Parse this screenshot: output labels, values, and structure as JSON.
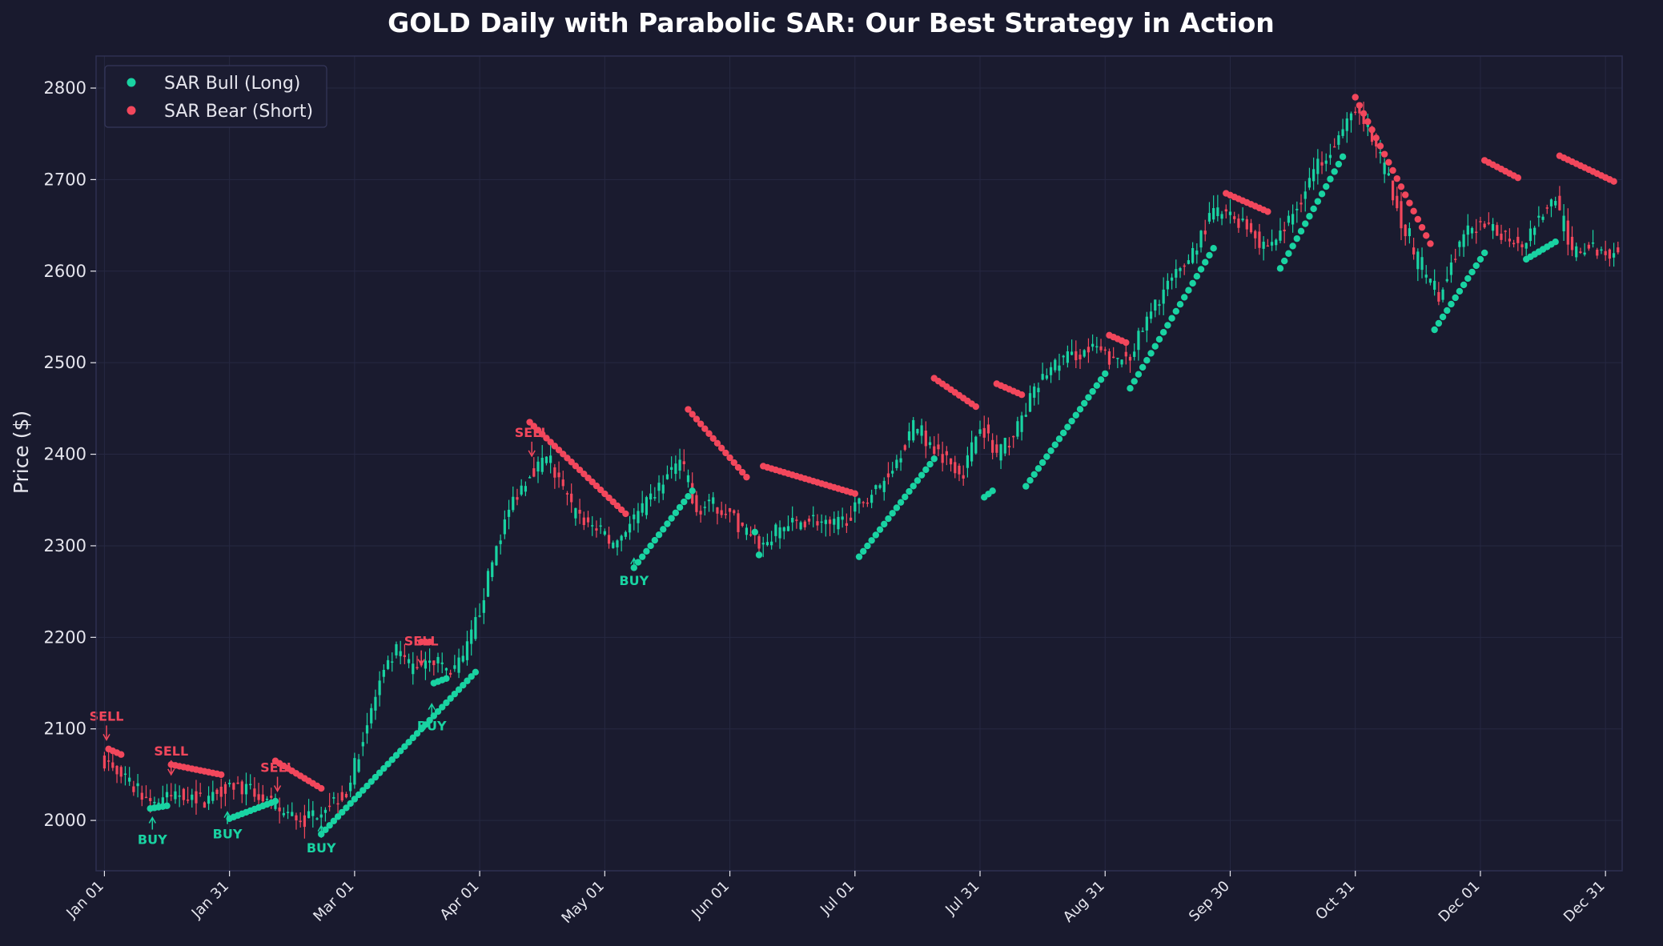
{
  "colors": {
    "background": "#191a2e",
    "plot_background": "#1a1b2f",
    "bull": "#19d3a2",
    "bear": "#f2475c",
    "grid": "#262842",
    "spine": "#2e3050",
    "text": "#e6e6ee"
  },
  "chart_data": {
    "type": "candlestick",
    "title": "GOLD Daily with Parabolic SAR: Our Best Strategy in Action",
    "xlabel": "",
    "ylabel": "Price ($)",
    "ylim": [
      1945,
      2835
    ],
    "x_range_days": [
      -2,
      364
    ],
    "y_ticks": [
      2000,
      2100,
      2200,
      2300,
      2400,
      2500,
      2600,
      2700,
      2800
    ],
    "x_ticks": [
      {
        "label": "Jan 01",
        "day": 0
      },
      {
        "label": "Jan 31",
        "day": 30
      },
      {
        "label": "Mar 01",
        "day": 60
      },
      {
        "label": "Apr 01",
        "day": 90
      },
      {
        "label": "May 01",
        "day": 120
      },
      {
        "label": "Jun 01",
        "day": 150
      },
      {
        "label": "Jul 01",
        "day": 180
      },
      {
        "label": "Jul 31",
        "day": 210
      },
      {
        "label": "Aug 31",
        "day": 240
      },
      {
        "label": "Sep 30",
        "day": 270
      },
      {
        "label": "Oct 31",
        "day": 300
      },
      {
        "label": "Dec 01",
        "day": 330
      },
      {
        "label": "Dec 31",
        "day": 360
      }
    ],
    "grid": true,
    "legend_position": "top-left",
    "series": [
      {
        "name": "SAR Bull (Long)",
        "color": "#19d3a2"
      },
      {
        "name": "SAR Bear (Short)",
        "color": "#f2475c"
      }
    ],
    "close_path": [
      [
        0,
        2065
      ],
      [
        6,
        2040
      ],
      [
        12,
        2020
      ],
      [
        18,
        2030
      ],
      [
        24,
        2022
      ],
      [
        30,
        2040
      ],
      [
        36,
        2030
      ],
      [
        42,
        2010
      ],
      [
        48,
        2000
      ],
      [
        54,
        2020
      ],
      [
        58,
        2030
      ],
      [
        62,
        2090
      ],
      [
        66,
        2150
      ],
      [
        70,
        2185
      ],
      [
        74,
        2165
      ],
      [
        78,
        2180
      ],
      [
        82,
        2160
      ],
      [
        86,
        2175
      ],
      [
        90,
        2230
      ],
      [
        94,
        2300
      ],
      [
        98,
        2350
      ],
      [
        102,
        2380
      ],
      [
        106,
        2395
      ],
      [
        110,
        2360
      ],
      [
        114,
        2330
      ],
      [
        118,
        2320
      ],
      [
        122,
        2300
      ],
      [
        126,
        2325
      ],
      [
        130,
        2345
      ],
      [
        134,
        2370
      ],
      [
        138,
        2395
      ],
      [
        142,
        2340
      ],
      [
        146,
        2345
      ],
      [
        150,
        2335
      ],
      [
        154,
        2310
      ],
      [
        158,
        2300
      ],
      [
        162,
        2320
      ],
      [
        166,
        2325
      ],
      [
        170,
        2330
      ],
      [
        174,
        2320
      ],
      [
        178,
        2330
      ],
      [
        182,
        2350
      ],
      [
        186,
        2365
      ],
      [
        190,
        2395
      ],
      [
        194,
        2430
      ],
      [
        198,
        2410
      ],
      [
        202,
        2395
      ],
      [
        206,
        2380
      ],
      [
        210,
        2435
      ],
      [
        214,
        2400
      ],
      [
        218,
        2420
      ],
      [
        222,
        2460
      ],
      [
        226,
        2490
      ],
      [
        230,
        2505
      ],
      [
        234,
        2510
      ],
      [
        238,
        2515
      ],
      [
        242,
        2500
      ],
      [
        246,
        2510
      ],
      [
        250,
        2545
      ],
      [
        254,
        2580
      ],
      [
        258,
        2600
      ],
      [
        262,
        2630
      ],
      [
        266,
        2665
      ],
      [
        270,
        2660
      ],
      [
        274,
        2650
      ],
      [
        278,
        2625
      ],
      [
        282,
        2640
      ],
      [
        286,
        2670
      ],
      [
        290,
        2710
      ],
      [
        294,
        2735
      ],
      [
        298,
        2760
      ],
      [
        300,
        2780
      ],
      [
        304,
        2745
      ],
      [
        308,
        2700
      ],
      [
        312,
        2640
      ],
      [
        316,
        2600
      ],
      [
        320,
        2570
      ],
      [
        324,
        2620
      ],
      [
        328,
        2650
      ],
      [
        332,
        2645
      ],
      [
        336,
        2640
      ],
      [
        340,
        2630
      ],
      [
        344,
        2660
      ],
      [
        348,
        2680
      ],
      [
        352,
        2620
      ],
      [
        356,
        2625
      ],
      [
        360,
        2620
      ],
      [
        363,
        2625
      ]
    ],
    "sar_bull": [
      {
        "from": 11,
        "to": 15,
        "start": 2013,
        "end": 2016
      },
      {
        "from": 30,
        "to": 41,
        "start": 2002,
        "end": 2021
      },
      {
        "from": 52,
        "to": 89,
        "start": 1985,
        "end": 2162
      },
      {
        "from": 79,
        "to": 82,
        "start": 2150,
        "end": 2155
      },
      {
        "from": 127,
        "to": 141,
        "start": 2276,
        "end": 2360
      },
      {
        "from": 156,
        "to": 157,
        "start": 2315,
        "end": 2290
      },
      {
        "from": 181,
        "to": 199,
        "start": 2288,
        "end": 2395
      },
      {
        "from": 211,
        "to": 213,
        "start": 2353,
        "end": 2360
      },
      {
        "from": 221,
        "to": 240,
        "start": 2365,
        "end": 2488
      },
      {
        "from": 246,
        "to": 266,
        "start": 2472,
        "end": 2625
      },
      {
        "from": 282,
        "to": 297,
        "start": 2603,
        "end": 2725
      },
      {
        "from": 319,
        "to": 331,
        "start": 2536,
        "end": 2620
      },
      {
        "from": 341,
        "to": 348,
        "start": 2613,
        "end": 2632
      }
    ],
    "sar_bear": [
      {
        "from": 1,
        "to": 4,
        "start": 2078,
        "end": 2072
      },
      {
        "from": 16,
        "to": 28,
        "start": 2061,
        "end": 2050
      },
      {
        "from": 41,
        "to": 52,
        "start": 2065,
        "end": 2035
      },
      {
        "from": 76,
        "to": 78,
        "start": 2195,
        "end": 2195
      },
      {
        "from": 102,
        "to": 125,
        "start": 2435,
        "end": 2335
      },
      {
        "from": 140,
        "to": 154,
        "start": 2449,
        "end": 2375
      },
      {
        "from": 158,
        "to": 180,
        "start": 2387,
        "end": 2357
      },
      {
        "from": 199,
        "to": 209,
        "start": 2483,
        "end": 2452
      },
      {
        "from": 214,
        "to": 220,
        "start": 2477,
        "end": 2465
      },
      {
        "from": 241,
        "to": 245,
        "start": 2530,
        "end": 2522
      },
      {
        "from": 269,
        "to": 279,
        "start": 2685,
        "end": 2665
      },
      {
        "from": 300,
        "to": 318,
        "start": 2790,
        "end": 2630
      },
      {
        "from": 331,
        "to": 339,
        "start": 2721,
        "end": 2702
      },
      {
        "from": 349,
        "to": 362,
        "start": 2726,
        "end": 2698
      }
    ],
    "signals": [
      {
        "type": "SELL",
        "day": 0.5,
        "price": 2088
      },
      {
        "type": "BUY",
        "day": 11.5,
        "price": 2004
      },
      {
        "type": "SELL",
        "day": 16,
        "price": 2050
      },
      {
        "type": "BUY",
        "day": 29.5,
        "price": 2010
      },
      {
        "type": "SELL",
        "day": 41.5,
        "price": 2032
      },
      {
        "type": "BUY",
        "day": 52,
        "price": 1995
      },
      {
        "type": "SELL",
        "day": 76,
        "price": 2170
      },
      {
        "type": "BUY",
        "day": 78.5,
        "price": 2128
      },
      {
        "type": "SELL",
        "day": 102.5,
        "price": 2398
      },
      {
        "type": "BUY",
        "day": 127,
        "price": 2287
      }
    ]
  }
}
